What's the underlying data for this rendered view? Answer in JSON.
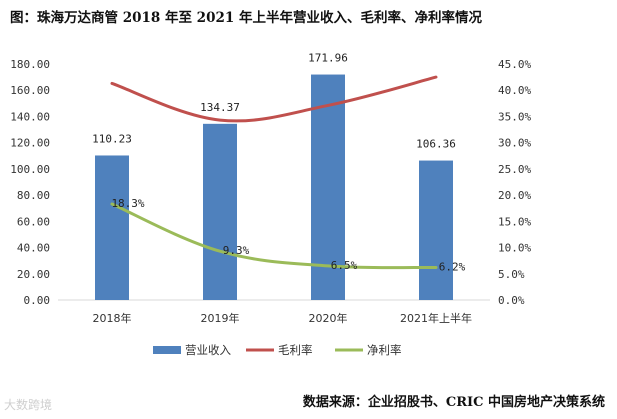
{
  "title": "图：珠海万达商管 2018 年至 2021 年上半年营业收入、毛利率、净利率情况",
  "source": "数据来源：企业招股书、CRIC 中国房地产决策系统",
  "watermark": "大数跨境",
  "chart_data": {
    "type": "bar",
    "categories": [
      "2018年",
      "2019年",
      "2020年",
      "2021年上半年"
    ],
    "series": [
      {
        "name": "营业收入",
        "type": "bar",
        "axis": "left",
        "values": [
          110.23,
          134.37,
          171.96,
          106.36
        ],
        "labels": [
          "110.23",
          "134.37",
          "171.96",
          "106.36"
        ],
        "color": "#4f81bd"
      },
      {
        "name": "毛利率",
        "type": "line",
        "axis": "right",
        "values": [
          41.3,
          34.3,
          37.1,
          42.5
        ],
        "labels": [],
        "color": "#c0504d"
      },
      {
        "name": "净利率",
        "type": "line",
        "axis": "right",
        "values": [
          18.3,
          9.3,
          6.5,
          6.2
        ],
        "labels": [
          "18.3%",
          "9.3%",
          "6.5%",
          "6.2%"
        ],
        "color": "#9bbb59"
      }
    ],
    "left_axis": {
      "ylim": [
        0,
        180
      ],
      "ticks": [
        "0.00",
        "20.00",
        "40.00",
        "60.00",
        "80.00",
        "100.00",
        "120.00",
        "140.00",
        "160.00",
        "180.00"
      ]
    },
    "right_axis": {
      "ylim": [
        0,
        45
      ],
      "ticks": [
        "0.0%",
        "5.0%",
        "10.0%",
        "15.0%",
        "20.0%",
        "25.0%",
        "30.0%",
        "35.0%",
        "40.0%",
        "45.0%"
      ]
    },
    "grid": false,
    "legend": "bottom"
  }
}
